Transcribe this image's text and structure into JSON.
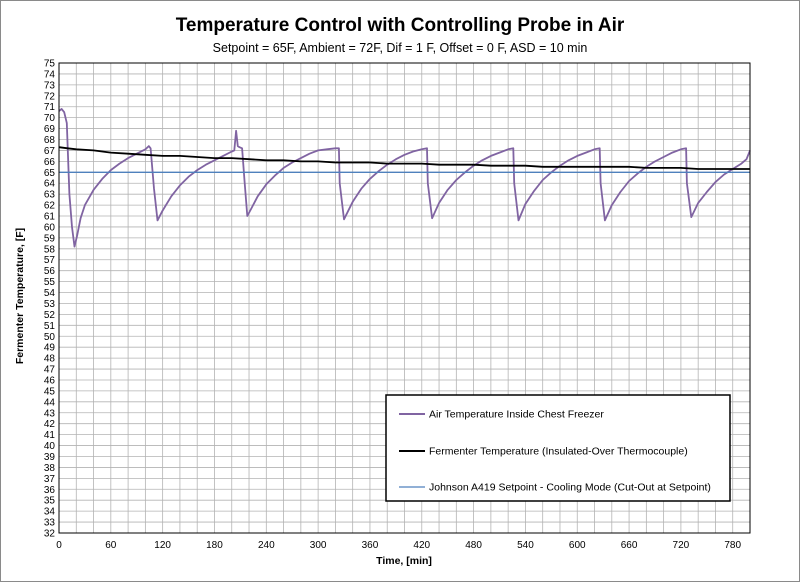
{
  "chart_data": {
    "type": "line",
    "title": "Temperature Control with Controlling Probe in Air",
    "subtitle": "Setpoint = 65F, Ambient = 72F, Dif = 1 F, Offset = 0 F, ASD = 10 min",
    "xlabel": "Time, [min]",
    "ylabel": "Fermenter Temperature, [F]",
    "xlim": [
      0,
      800
    ],
    "ylim": [
      32,
      75
    ],
    "x_ticks": [
      0,
      60,
      120,
      180,
      240,
      300,
      360,
      420,
      480,
      540,
      600,
      660,
      720,
      780
    ],
    "y_ticks": [
      32,
      33,
      34,
      35,
      36,
      37,
      38,
      39,
      40,
      41,
      42,
      43,
      44,
      45,
      46,
      47,
      48,
      49,
      50,
      51,
      52,
      53,
      54,
      55,
      56,
      57,
      58,
      59,
      60,
      61,
      62,
      63,
      64,
      65,
      66,
      67,
      68,
      69,
      70,
      71,
      72,
      73,
      74,
      75
    ],
    "grid": true,
    "legend_position": "lower-right",
    "series": [
      {
        "name": "Air Temperature Inside Chest Freezer",
        "color": "#8064a2",
        "x": [
          0,
          3,
          6,
          9,
          12,
          15,
          18,
          21,
          25,
          30,
          40,
          50,
          60,
          70,
          80,
          90,
          100,
          104,
          106,
          110,
          114,
          120,
          130,
          140,
          150,
          160,
          170,
          180,
          190,
          200,
          203,
          205,
          207,
          209,
          212,
          215,
          218,
          222,
          230,
          240,
          250,
          260,
          270,
          280,
          290,
          300,
          310,
          320,
          324,
          325,
          330,
          340,
          350,
          360,
          370,
          380,
          390,
          400,
          410,
          420,
          426,
          427,
          432,
          440,
          450,
          460,
          470,
          480,
          490,
          500,
          510,
          520,
          526,
          527,
          532,
          540,
          550,
          560,
          570,
          580,
          590,
          600,
          610,
          620,
          626,
          627,
          632,
          640,
          650,
          660,
          670,
          680,
          690,
          700,
          710,
          720,
          726,
          727,
          732,
          740,
          750,
          760,
          770,
          780,
          790,
          796,
          800
        ],
        "y": [
          70.6,
          70.8,
          70.5,
          69.5,
          63,
          60,
          58.2,
          59.2,
          60.8,
          62,
          63.4,
          64.4,
          65.2,
          65.8,
          66.3,
          66.7,
          67.1,
          67.4,
          67.2,
          63.5,
          60.6,
          61.5,
          62.8,
          63.8,
          64.6,
          65.2,
          65.7,
          66.1,
          66.5,
          66.9,
          67.0,
          68.8,
          67.4,
          67.3,
          67.2,
          64.0,
          61.0,
          61.6,
          62.8,
          63.9,
          64.7,
          65.4,
          65.9,
          66.3,
          66.7,
          67.0,
          67.1,
          67.2,
          67.2,
          64.0,
          60.7,
          62.3,
          63.5,
          64.4,
          65.1,
          65.7,
          66.2,
          66.6,
          66.9,
          67.1,
          67.2,
          64.0,
          60.8,
          62.2,
          63.4,
          64.3,
          65.0,
          65.6,
          66.1,
          66.5,
          66.8,
          67.1,
          67.2,
          64.0,
          60.6,
          62.1,
          63.3,
          64.3,
          65.0,
          65.6,
          66.1,
          66.5,
          66.8,
          67.1,
          67.2,
          64.0,
          60.6,
          62.0,
          63.2,
          64.2,
          64.9,
          65.5,
          66.0,
          66.4,
          66.8,
          67.1,
          67.2,
          64.0,
          60.9,
          62.2,
          63.2,
          64.1,
          64.8,
          65.3,
          65.8,
          66.2,
          67.0
        ]
      },
      {
        "name": "Fermenter Temperature (Insulated-Over Thermocouple)",
        "color": "#000000",
        "x": [
          0,
          10,
          20,
          40,
          60,
          80,
          100,
          120,
          140,
          160,
          180,
          200,
          220,
          240,
          260,
          280,
          300,
          320,
          340,
          360,
          380,
          400,
          420,
          440,
          460,
          480,
          500,
          520,
          540,
          560,
          580,
          600,
          620,
          640,
          660,
          680,
          700,
          720,
          740,
          760,
          780,
          800
        ],
        "y": [
          67.3,
          67.2,
          67.1,
          67.0,
          66.8,
          66.7,
          66.6,
          66.5,
          66.5,
          66.4,
          66.3,
          66.3,
          66.2,
          66.1,
          66.1,
          66.0,
          66.0,
          65.9,
          65.9,
          65.9,
          65.8,
          65.8,
          65.8,
          65.7,
          65.7,
          65.7,
          65.6,
          65.6,
          65.6,
          65.5,
          65.5,
          65.5,
          65.5,
          65.5,
          65.5,
          65.4,
          65.4,
          65.4,
          65.3,
          65.3,
          65.3,
          65.3
        ]
      },
      {
        "name": "Johnson A419 Setpoint - Cooling Mode (Cut-Out at Setpoint)",
        "color": "#4f81bd",
        "x": [
          0,
          800
        ],
        "y": [
          65,
          65
        ]
      }
    ]
  }
}
